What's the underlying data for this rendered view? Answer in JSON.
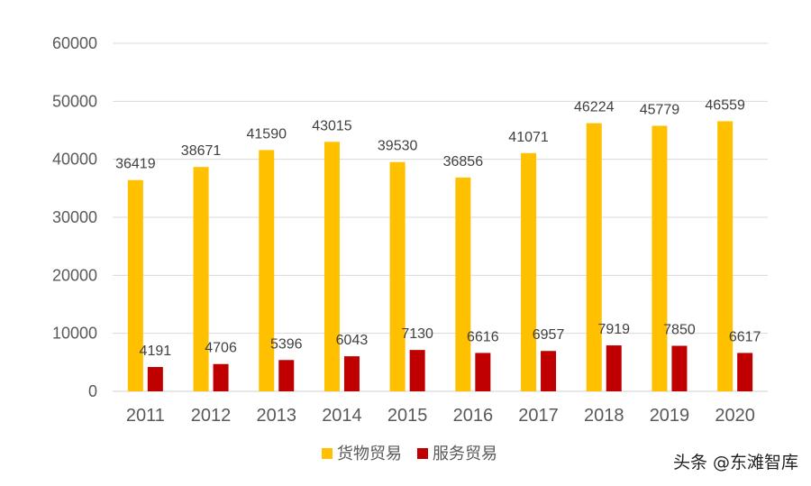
{
  "chart_data": {
    "type": "bar",
    "categories": [
      "2011",
      "2012",
      "2013",
      "2014",
      "2015",
      "2016",
      "2017",
      "2018",
      "2019",
      "2020"
    ],
    "series": [
      {
        "name": "货物贸易",
        "color": "#FFC000",
        "values": [
          36419,
          38671,
          41590,
          43015,
          39530,
          36856,
          41071,
          46224,
          45779,
          46559
        ]
      },
      {
        "name": "服务贸易",
        "color": "#C00000",
        "values": [
          4191,
          4706,
          5396,
          6043,
          7130,
          6616,
          6957,
          7919,
          7850,
          6617
        ]
      }
    ],
    "ylim": [
      0,
      60000
    ],
    "yticks": [
      0,
      10000,
      20000,
      30000,
      40000,
      50000,
      60000
    ],
    "grid": true,
    "legend": "bottom",
    "data_labels": true
  },
  "watermark": "头条 @东滩智库"
}
